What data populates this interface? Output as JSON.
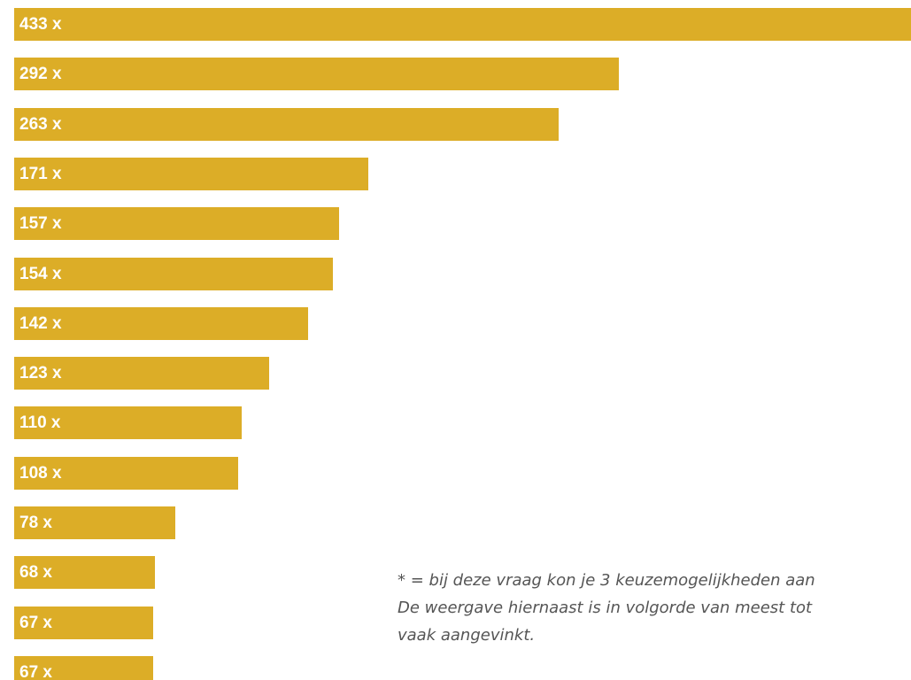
{
  "colors": {
    "bar": "#dcad27",
    "label": "#ffffff",
    "footnote": "#555555"
  },
  "chart_data": {
    "type": "bar",
    "orientation": "horizontal",
    "title": "",
    "xlabel": "",
    "ylabel": "",
    "xlim": [
      0,
      433
    ],
    "grid": false,
    "legend": "none",
    "series": [
      {
        "values": [
          433,
          292,
          263,
          171,
          157,
          154,
          142,
          123,
          110,
          108,
          78,
          68,
          67,
          67
        ],
        "labels": [
          "433 x",
          "292 x",
          "263 x",
          "171 x",
          "157 x",
          "154 x",
          "142 x",
          "123 x",
          "110 x",
          "108 x",
          "78 x",
          "68 x",
          "67 x",
          "67 x"
        ]
      }
    ]
  },
  "footnote": {
    "line1": "* = bij deze vraag kon je 3 keuzemogelijkheden aan",
    "line2": "De weergave hiernaast is in volgorde van meest tot",
    "line3": "vaak aangevinkt."
  }
}
